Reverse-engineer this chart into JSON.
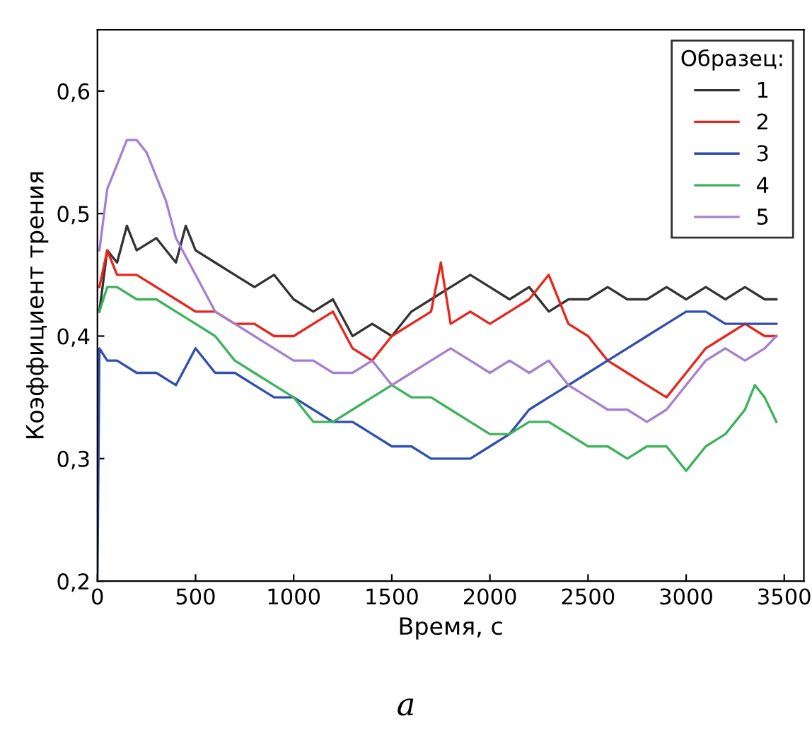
{
  "chart_data": {
    "type": "line",
    "xlabel": "Время, с",
    "ylabel": "Коэффициент трения",
    "legend_title": "Образец:",
    "legend": "top right",
    "grid": false,
    "line_style": "solid",
    "marker": "none",
    "xlim": [
      0,
      3600
    ],
    "ylim": [
      0.2,
      0.65
    ],
    "xticks": [
      0,
      500,
      1000,
      1500,
      2000,
      2500,
      3000,
      3500
    ],
    "yticks": [
      {
        "value": 0.2,
        "label": "0,2"
      },
      {
        "value": 0.3,
        "label": "0,3"
      },
      {
        "value": 0.4,
        "label": "0,4"
      },
      {
        "value": 0.5,
        "label": "0,5"
      },
      {
        "value": 0.6,
        "label": "0,6"
      }
    ],
    "annotations": [
      "а"
    ],
    "series": [
      {
        "name": "1",
        "color": "#333333",
        "x": [
          10,
          50,
          100,
          150,
          200,
          300,
          400,
          450,
          500,
          600,
          700,
          800,
          900,
          1000,
          1100,
          1200,
          1300,
          1400,
          1500,
          1600,
          1700,
          1800,
          1900,
          2000,
          2100,
          2200,
          2300,
          2400,
          2500,
          2600,
          2700,
          2800,
          2900,
          3000,
          3100,
          3200,
          3300,
          3400,
          3460
        ],
        "values": [
          0.42,
          0.47,
          0.46,
          0.49,
          0.47,
          0.48,
          0.46,
          0.49,
          0.47,
          0.46,
          0.45,
          0.44,
          0.45,
          0.43,
          0.42,
          0.43,
          0.4,
          0.41,
          0.4,
          0.42,
          0.43,
          0.44,
          0.45,
          0.44,
          0.43,
          0.44,
          0.42,
          0.43,
          0.43,
          0.44,
          0.43,
          0.43,
          0.44,
          0.43,
          0.44,
          0.43,
          0.44,
          0.43,
          0.43
        ]
      },
      {
        "name": "2",
        "color": "#e8251b",
        "x": [
          10,
          50,
          100,
          200,
          300,
          400,
          500,
          600,
          700,
          800,
          900,
          1000,
          1100,
          1200,
          1300,
          1400,
          1500,
          1600,
          1700,
          1750,
          1800,
          1900,
          2000,
          2100,
          2200,
          2300,
          2400,
          2500,
          2600,
          2700,
          2800,
          2900,
          3000,
          3100,
          3200,
          3300,
          3400,
          3460
        ],
        "values": [
          0.44,
          0.47,
          0.45,
          0.45,
          0.44,
          0.43,
          0.42,
          0.42,
          0.41,
          0.41,
          0.4,
          0.4,
          0.41,
          0.42,
          0.39,
          0.38,
          0.4,
          0.41,
          0.42,
          0.46,
          0.41,
          0.42,
          0.41,
          0.42,
          0.43,
          0.45,
          0.41,
          0.4,
          0.38,
          0.37,
          0.36,
          0.35,
          0.37,
          0.39,
          0.4,
          0.41,
          0.4,
          0.4
        ]
      },
      {
        "name": "3",
        "color": "#2f4fb0",
        "x": [
          0,
          10,
          50,
          100,
          200,
          300,
          400,
          500,
          600,
          700,
          800,
          900,
          1000,
          1100,
          1200,
          1300,
          1400,
          1500,
          1600,
          1700,
          1800,
          1900,
          2000,
          2100,
          2200,
          2300,
          2400,
          2500,
          2600,
          2700,
          2800,
          2900,
          3000,
          3100,
          3200,
          3300,
          3400,
          3460
        ],
        "values": [
          0.2,
          0.39,
          0.38,
          0.38,
          0.37,
          0.37,
          0.36,
          0.39,
          0.37,
          0.37,
          0.36,
          0.35,
          0.35,
          0.34,
          0.33,
          0.33,
          0.32,
          0.31,
          0.31,
          0.3,
          0.3,
          0.3,
          0.31,
          0.32,
          0.34,
          0.35,
          0.36,
          0.37,
          0.38,
          0.39,
          0.4,
          0.41,
          0.42,
          0.42,
          0.41,
          0.41,
          0.41,
          0.41
        ]
      },
      {
        "name": "4",
        "color": "#3cb35a",
        "x": [
          10,
          50,
          100,
          200,
          300,
          400,
          500,
          600,
          700,
          800,
          900,
          1000,
          1100,
          1200,
          1300,
          1400,
          1500,
          1600,
          1700,
          1800,
          1900,
          2000,
          2100,
          2200,
          2300,
          2400,
          2500,
          2600,
          2700,
          2800,
          2900,
          3000,
          3100,
          3200,
          3300,
          3350,
          3400,
          3460
        ],
        "values": [
          0.42,
          0.44,
          0.44,
          0.43,
          0.43,
          0.42,
          0.41,
          0.4,
          0.38,
          0.37,
          0.36,
          0.35,
          0.33,
          0.33,
          0.34,
          0.35,
          0.36,
          0.35,
          0.35,
          0.34,
          0.33,
          0.32,
          0.32,
          0.33,
          0.33,
          0.32,
          0.31,
          0.31,
          0.3,
          0.31,
          0.31,
          0.29,
          0.31,
          0.32,
          0.34,
          0.36,
          0.35,
          0.33
        ]
      },
      {
        "name": "5",
        "color": "#a77fcf",
        "x": [
          10,
          50,
          100,
          150,
          200,
          250,
          300,
          350,
          400,
          500,
          600,
          700,
          800,
          900,
          1000,
          1100,
          1200,
          1300,
          1400,
          1500,
          1600,
          1700,
          1800,
          1900,
          2000,
          2100,
          2200,
          2300,
          2400,
          2500,
          2600,
          2700,
          2800,
          2900,
          3000,
          3100,
          3200,
          3300,
          3400,
          3460
        ],
        "values": [
          0.47,
          0.52,
          0.54,
          0.56,
          0.56,
          0.55,
          0.53,
          0.51,
          0.48,
          0.45,
          0.42,
          0.41,
          0.4,
          0.39,
          0.38,
          0.38,
          0.37,
          0.37,
          0.38,
          0.36,
          0.37,
          0.38,
          0.39,
          0.38,
          0.37,
          0.38,
          0.37,
          0.38,
          0.36,
          0.35,
          0.34,
          0.34,
          0.33,
          0.34,
          0.36,
          0.38,
          0.39,
          0.38,
          0.39,
          0.4
        ]
      }
    ]
  }
}
